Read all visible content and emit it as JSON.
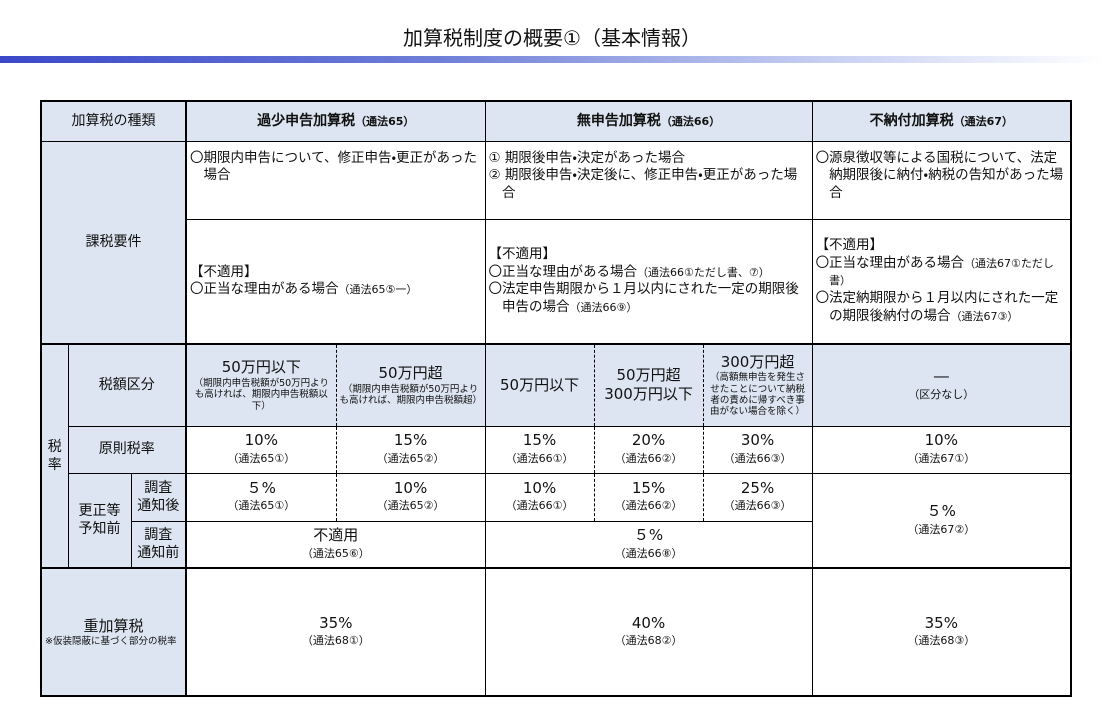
{
  "title": "加算税制度の概要①（基本情報）",
  "table": {
    "corner": "加算税の種類",
    "columns": [
      {
        "name": "過少申告加算税",
        "law": "（通法65）"
      },
      {
        "name": "無申告加算税",
        "law": "（通法66）"
      },
      {
        "name": "不納付加算税",
        "law": "（通法67）"
      }
    ],
    "requirements": {
      "label": "課税要件",
      "conditions": [
        [
          "〇期限内申告について、修正申告・更正があった場合"
        ],
        [
          "① 期限後申告・決定があった場合",
          "② 期限後申告・決定後に、修正申告・更正があった場合"
        ],
        [
          "〇源泉徴収等による国税について、法定納期限後に納付・納税の告知があった場合"
        ]
      ],
      "exclusions": [
        {
          "heading": "【不適用】",
          "items": [
            {
              "text": "〇正当な理由がある場合",
              "law": "（通法65⑤一）"
            }
          ]
        },
        {
          "heading": "【不適用】",
          "items": [
            {
              "text": "〇正当な理由がある場合",
              "law": "（通法66①ただし書、⑦）"
            },
            {
              "text": "〇法定申告期限から１月以内にされた一定の期限後申告の場合",
              "law": "（通法66⑨）"
            }
          ]
        },
        {
          "heading": "【不適用】",
          "items": [
            {
              "text": "〇正当な理由がある場合",
              "law": "（通法67①ただし書）"
            },
            {
              "text": "〇法定納期限から１月以内にされた一定の期限後納付の場合",
              "law": "（通法67③）"
            }
          ]
        }
      ]
    },
    "rate_label": "税\n率",
    "brackets": {
      "label": "税額区分",
      "items": [
        {
          "text": "50万円以下",
          "note": "（期限内申告税額が50万円よりも高ければ、期限内申告税額以下）"
        },
        {
          "text": "50万円超",
          "note": "（期限内申告税額が50万円よりも高ければ、期限内申告税額超）"
        },
        {
          "text": "50万円以下"
        },
        {
          "text": "50万円超\n300万円以下"
        },
        {
          "text": "300万円超",
          "note": "（高額無申告を発生させたことについて納税者の責めに帰すべき事由がない場合を除く）"
        },
        {
          "text": "―",
          "note": "（区分なし）"
        }
      ]
    },
    "base_rate": {
      "label": "原則税率",
      "items": [
        {
          "rate": "10%",
          "law": "（通法65①）"
        },
        {
          "rate": "15%",
          "law": "（通法65②）"
        },
        {
          "rate": "15%",
          "law": "（通法66①）"
        },
        {
          "rate": "20%",
          "law": "（通法66②）"
        },
        {
          "rate": "30%",
          "law": "（通法66③）"
        },
        {
          "rate": "10%",
          "law": "（通法67①）"
        }
      ]
    },
    "pre_notice": {
      "label": "更正等\n予知前",
      "after": {
        "label": "調査\n通知後",
        "items": [
          {
            "rate": "５%",
            "law": "（通法65①）"
          },
          {
            "rate": "10%",
            "law": "（通法65②）"
          },
          {
            "rate": "10%",
            "law": "（通法66①）"
          },
          {
            "rate": "15%",
            "law": "（通法66②）"
          },
          {
            "rate": "25%",
            "law": "（通法66③）"
          }
        ]
      },
      "before": {
        "label": "調査\n通知前",
        "items": [
          {
            "rate": "不適用",
            "law": "（通法65⑥）"
          },
          {
            "rate": "５%",
            "law": "（通法66⑧）"
          }
        ]
      },
      "nonpayment": {
        "rate": "５%",
        "law": "（通法67②）"
      }
    },
    "heavy": {
      "label": "重加算税",
      "note": "※仮装隠蔽に基づく部分の税率",
      "items": [
        {
          "rate": "35%",
          "law": "（通法68①）"
        },
        {
          "rate": "40%",
          "law": "（通法68②）"
        },
        {
          "rate": "35%",
          "law": "（通法68③）"
        }
      ]
    }
  }
}
